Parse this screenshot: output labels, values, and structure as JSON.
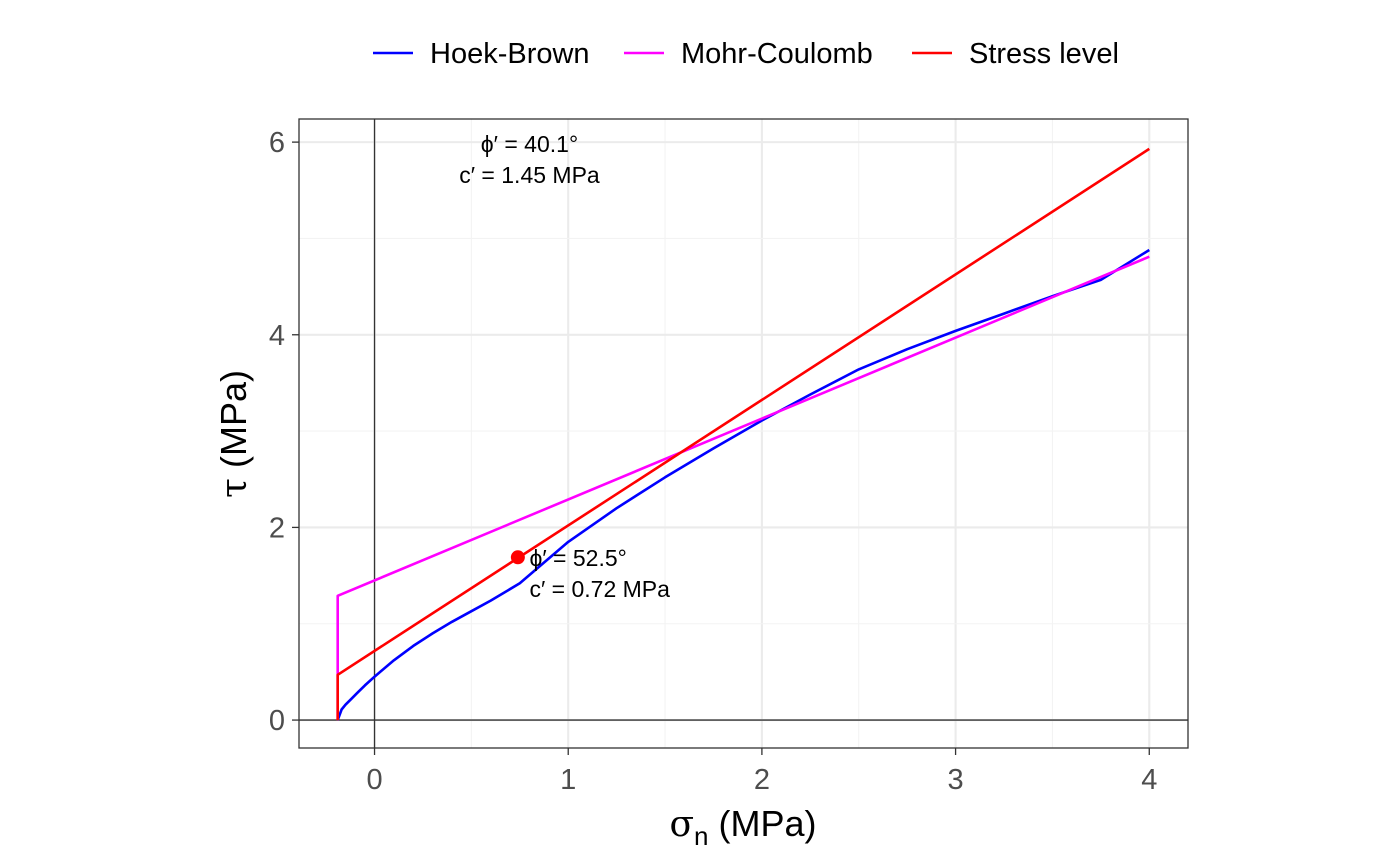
{
  "chart_data": {
    "type": "line",
    "xlabel": {
      "symbol": "σ",
      "subscript": "n",
      "unit": " (MPa)"
    },
    "ylabel": {
      "symbol": "τ",
      "unit": " (MPa)"
    },
    "xlim": [
      -0.39,
      4.2
    ],
    "ylim": [
      -0.29,
      6.24
    ],
    "xticks": [
      0,
      1,
      2,
      3,
      4
    ],
    "yticks": [
      0,
      2,
      4,
      6
    ],
    "grid": true,
    "legend_position": "top",
    "reference_lines": {
      "x": 0,
      "y": 0
    },
    "series": [
      {
        "name": "Hoek-Brown",
        "color": "#0000ff",
        "points": [
          [
            -0.19,
            0
          ],
          [
            -0.17,
            0.11
          ],
          [
            -0.15,
            0.16
          ],
          [
            -0.12,
            0.22
          ],
          [
            -0.09,
            0.28
          ],
          [
            -0.05,
            0.36
          ],
          [
            0,
            0.45
          ],
          [
            0.1,
            0.62
          ],
          [
            0.2,
            0.77
          ],
          [
            0.3,
            0.9
          ],
          [
            0.4,
            1.02
          ],
          [
            0.5,
            1.13
          ],
          [
            0.6,
            1.24
          ],
          [
            0.75,
            1.42
          ],
          [
            1,
            1.85
          ],
          [
            1.25,
            2.2
          ],
          [
            1.5,
            2.52
          ],
          [
            1.75,
            2.82
          ],
          [
            2,
            3.11
          ],
          [
            2.25,
            3.38
          ],
          [
            2.5,
            3.64
          ],
          [
            2.75,
            3.85
          ],
          [
            3,
            4.04
          ],
          [
            3.25,
            4.22
          ],
          [
            3.5,
            4.4
          ],
          [
            3.75,
            4.57
          ],
          [
            4,
            4.88
          ]
        ]
      },
      {
        "name": "Mohr-Coulomb",
        "color": "#ff00ff",
        "points": [
          [
            -0.19,
            0
          ],
          [
            -0.19,
            1.29
          ],
          [
            4,
            4.81
          ]
        ]
      },
      {
        "name": "Stress level",
        "color": "#ff0000",
        "points": [
          [
            -0.19,
            0
          ],
          [
            -0.19,
            0.47
          ],
          [
            4,
            5.93
          ]
        ]
      }
    ],
    "marker": {
      "x": 0.74,
      "y": 1.69,
      "color": "#ff0000"
    },
    "annotations": [
      {
        "x": 0.8,
        "y": 5.9,
        "anchor": "middle",
        "lines": [
          "ϕ′ = 40.1°",
          "c′ = 1.45 MPa"
        ]
      },
      {
        "x": 0.8,
        "y": 1.6,
        "anchor": "start",
        "lines": [
          "ϕ′ = 52.5°",
          "c′ = 0.72 MPa"
        ]
      }
    ]
  }
}
